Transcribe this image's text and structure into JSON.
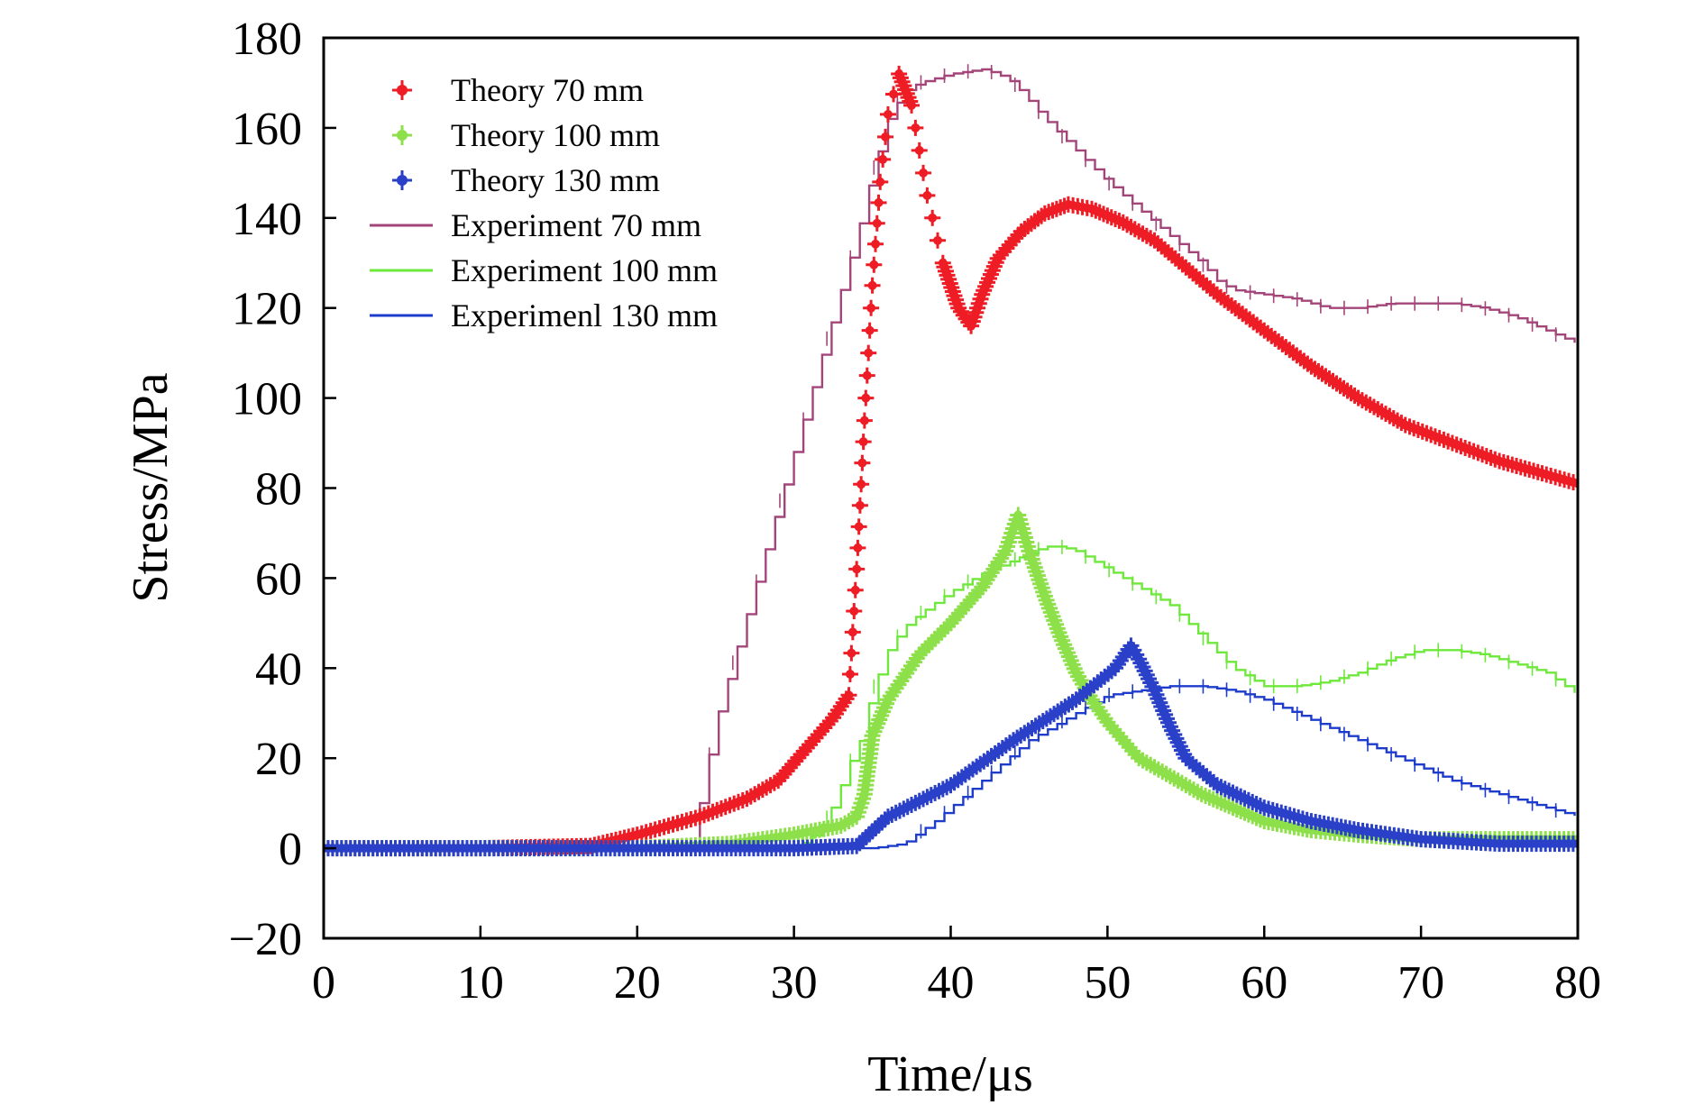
{
  "chart_data": {
    "type": "line",
    "title": "",
    "xlabel": "Time/μs",
    "ylabel": "Stress/MPa",
    "xlim": [
      0,
      80
    ],
    "ylim": [
      -20,
      180
    ],
    "xticks": [
      0,
      10,
      20,
      30,
      40,
      50,
      60,
      70,
      80
    ],
    "yticks": [
      -20,
      0,
      20,
      40,
      60,
      80,
      100,
      120,
      140,
      160,
      180
    ],
    "xtick_labels": [
      "0",
      "10",
      "20",
      "30",
      "40",
      "50",
      "60",
      "70",
      "80"
    ],
    "ytick_labels": [
      "−20",
      "0",
      "20",
      "40",
      "60",
      "80",
      "100",
      "120",
      "140",
      "160",
      "180"
    ],
    "grid": false,
    "legend_position": "top-left",
    "series": [
      {
        "name": "Theory 70 mm",
        "style": "markers",
        "color": "#ee1c25",
        "x": [
          0,
          10,
          17,
          20,
          24,
          27,
          29,
          31,
          32.5,
          33.5,
          34,
          34.5,
          35,
          35.5,
          36,
          36.7,
          37.5,
          38.5,
          39.5,
          40.5,
          41.3,
          42,
          43,
          44.5,
          46,
          47.5,
          49,
          51,
          53,
          55,
          57,
          60,
          63,
          66,
          69,
          72,
          75,
          78,
          80
        ],
        "y": [
          0,
          0,
          0.5,
          3,
          7,
          11,
          15,
          23,
          29,
          34,
          62,
          95,
          125,
          148,
          163,
          172,
          165,
          145,
          130,
          120,
          116,
          123,
          131,
          137,
          141,
          143,
          142,
          139,
          135,
          129,
          123,
          115,
          107,
          100,
          94,
          90,
          86,
          83,
          81
        ]
      },
      {
        "name": "Theory 100 mm",
        "style": "markers",
        "color": "#8ee04a",
        "x": [
          0,
          20,
          26,
          30,
          33,
          34,
          34.5,
          35,
          36,
          38,
          40,
          42,
          43.5,
          44.3,
          45,
          46,
          47,
          48,
          49,
          50,
          51,
          52,
          54,
          56,
          58,
          60,
          63,
          66,
          70,
          75,
          80
        ],
        "y": [
          0,
          0,
          1,
          3,
          5,
          7,
          12,
          25,
          33,
          43,
          50,
          58,
          66,
          74,
          66,
          56,
          47,
          39,
          33,
          28,
          24,
          20,
          16,
          12,
          9,
          6,
          4,
          3,
          2,
          2,
          2
        ]
      },
      {
        "name": "Theory 130 mm",
        "style": "markers",
        "color": "#2a40c8",
        "x": [
          0,
          20,
          30,
          34,
          36,
          40,
          44,
          48,
          50.5,
          51.5,
          52,
          53,
          54,
          55,
          57,
          60,
          63,
          66,
          70,
          75,
          80
        ],
        "y": [
          0,
          0,
          0,
          0.5,
          7,
          14,
          24,
          33,
          40,
          45,
          42,
          35,
          27,
          20,
          14,
          9,
          6,
          4,
          2,
          1,
          1
        ]
      },
      {
        "name": "Experiment 70 mm",
        "style": "line",
        "color": "#a4457a",
        "x": [
          0,
          23.8,
          24,
          25,
          26,
          27,
          28,
          29,
          30,
          31,
          32,
          33,
          34,
          35,
          36,
          37,
          38,
          40,
          42,
          43,
          44,
          45,
          46,
          48,
          50,
          52,
          54,
          56,
          57,
          58,
          60,
          62,
          64,
          66,
          68,
          70,
          72,
          74,
          76,
          78,
          80
        ],
        "y": [
          0,
          0,
          10,
          28,
          40,
          52,
          64,
          76,
          88,
          100,
          112,
          124,
          136,
          150,
          162,
          168,
          170,
          172,
          173,
          172,
          170,
          166,
          162,
          155,
          148,
          142,
          136,
          130,
          126,
          124,
          123,
          122,
          120,
          120,
          121,
          121,
          121,
          120,
          118,
          115,
          112
        ]
      },
      {
        "name": "Experiment 100 mm",
        "style": "line",
        "color": "#6ee83a",
        "x": [
          0,
          30,
          31,
          32,
          32.8,
          33.5,
          34,
          35,
          36,
          37,
          38,
          40,
          42,
          44,
          46,
          47,
          48,
          50,
          52,
          54,
          56,
          58,
          60,
          62,
          64,
          66,
          68,
          70,
          72,
          74,
          76,
          78,
          80
        ],
        "y": [
          0,
          0,
          2,
          6,
          12,
          19,
          21,
          35,
          44,
          49,
          52,
          57,
          61,
          64,
          67,
          67,
          66,
          62,
          58,
          54,
          47,
          40,
          36,
          36,
          37,
          39,
          42,
          44,
          44,
          43,
          41,
          39,
          34
        ]
      },
      {
        "name": "Experimenl 130 mm",
        "style": "line",
        "color": "#1e3ccc",
        "x": [
          0,
          35,
          37,
          39,
          41,
          43,
          45,
          47,
          49,
          50,
          52,
          54,
          56,
          58,
          60,
          62,
          64,
          66,
          68,
          70,
          72,
          74,
          76,
          78,
          80
        ],
        "y": [
          0,
          0,
          1,
          6,
          12,
          18,
          24,
          28,
          32,
          34,
          35,
          36,
          36,
          35,
          33,
          30,
          27,
          24,
          21,
          18,
          15,
          13,
          11,
          9,
          7
        ]
      }
    ]
  }
}
